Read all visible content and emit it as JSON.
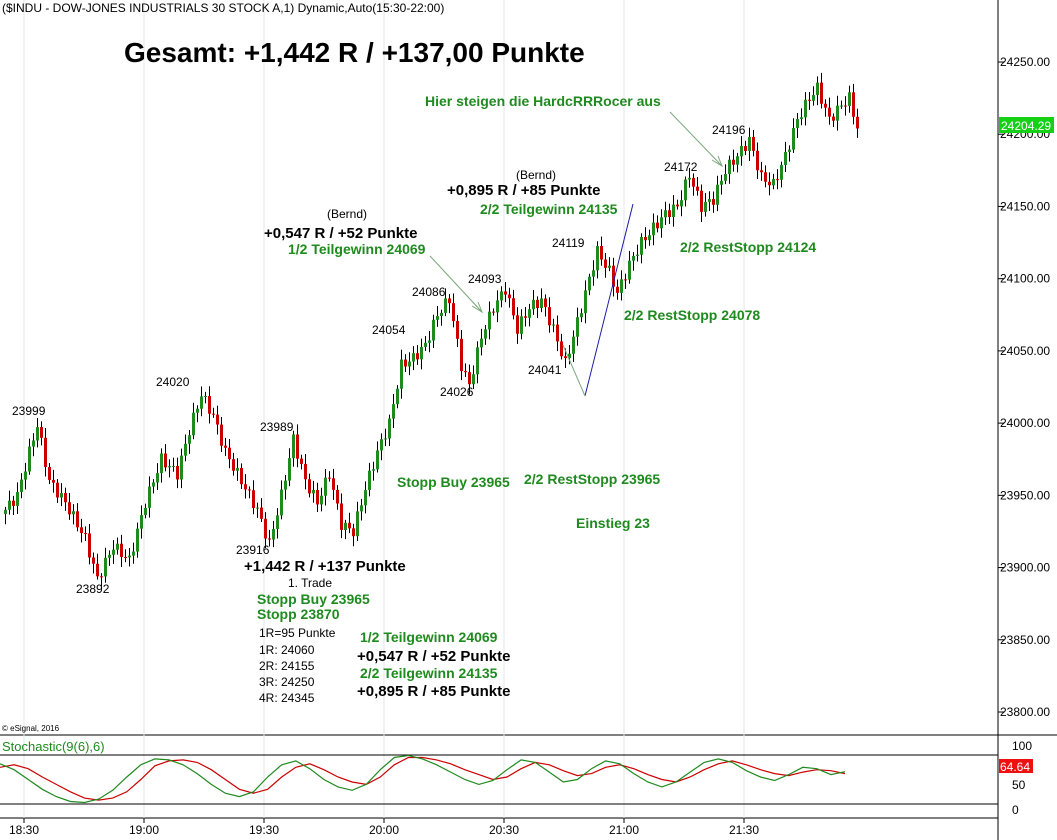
{
  "header": {
    "symbol_line": "($INDU - DOW-JONES INDUSTRIALS 30 STOCK A,1) Dynamic,Auto(15:30-22:00)",
    "summary": "Gesamt: +1,442 R / +137,00 Punkte",
    "copyright": "© eSignal, 2016"
  },
  "chart_data": {
    "type": "candlestick",
    "title": "($INDU - DOW-JONES INDUSTRIALS 30 STOCK A,1) Dynamic,Auto(15:30-22:00)",
    "x_ticks": [
      "18:30",
      "19:00",
      "19:30",
      "20:00",
      "20:30",
      "21:00",
      "21:30"
    ],
    "y_ticks": [
      "24250.00",
      "24200.00",
      "24150.00",
      "24100.00",
      "24050.00",
      "24000.00",
      "23950.00",
      "23900.00",
      "23850.00",
      "23800.00"
    ],
    "ylim": [
      23788,
      24264
    ],
    "last_price": "24204.29",
    "price_path": [
      [
        0,
        23940
      ],
      [
        3,
        23950
      ],
      [
        6,
        23980
      ],
      [
        8,
        23999
      ],
      [
        11,
        23960
      ],
      [
        15,
        23945
      ],
      [
        20,
        23920
      ],
      [
        23,
        23892
      ],
      [
        27,
        23915
      ],
      [
        31,
        23905
      ],
      [
        35,
        23945
      ],
      [
        39,
        23975
      ],
      [
        43,
        23965
      ],
      [
        46,
        23995
      ],
      [
        49,
        24020
      ],
      [
        52,
        24005
      ],
      [
        55,
        23980
      ],
      [
        59,
        23960
      ],
      [
        63,
        23940
      ],
      [
        66,
        23916
      ],
      [
        69,
        23950
      ],
      [
        72,
        23989
      ],
      [
        75,
        23960
      ],
      [
        78,
        23945
      ],
      [
        81,
        23965
      ],
      [
        84,
        23930
      ],
      [
        87,
        23925
      ],
      [
        90,
        23955
      ],
      [
        93,
        23980
      ],
      [
        96,
        24000
      ],
      [
        99,
        24040
      ],
      [
        102,
        24045
      ],
      [
        105,
        24054
      ],
      [
        108,
        24075
      ],
      [
        111,
        24086
      ],
      [
        114,
        24040
      ],
      [
        116,
        24026
      ],
      [
        119,
        24060
      ],
      [
        122,
        24080
      ],
      [
        125,
        24093
      ],
      [
        128,
        24065
      ],
      [
        131,
        24080
      ],
      [
        134,
        24085
      ],
      [
        137,
        24065
      ],
      [
        140,
        24041
      ],
      [
        143,
        24070
      ],
      [
        146,
        24100
      ],
      [
        148,
        24119
      ],
      [
        151,
        24105
      ],
      [
        153,
        24090
      ],
      [
        156,
        24110
      ],
      [
        159,
        24125
      ],
      [
        162,
        24135
      ],
      [
        165,
        24145
      ],
      [
        168,
        24150
      ],
      [
        171,
        24172
      ],
      [
        174,
        24150
      ],
      [
        177,
        24155
      ],
      [
        180,
        24175
      ],
      [
        183,
        24185
      ],
      [
        186,
        24196
      ],
      [
        189,
        24170
      ],
      [
        192,
        24165
      ],
      [
        195,
        24185
      ],
      [
        198,
        24210
      ],
      [
        201,
        24225
      ],
      [
        203,
        24232
      ],
      [
        206,
        24210
      ],
      [
        209,
        24220
      ],
      [
        211,
        24225
      ],
      [
        213,
        24204
      ]
    ],
    "price_labels": [
      "23999",
      "23892",
      "24020",
      "23989",
      "23916",
      "24054",
      "24086",
      "24026",
      "24093",
      "24041",
      "24119",
      "24172",
      "24196"
    ],
    "indicator": {
      "name": "Stochastic(9(6),6)",
      "levels": [
        "100",
        "50",
        "0"
      ],
      "last_value": "64.64",
      "series": [
        {
          "color": "#cc0000",
          "values": [
            75,
            80,
            72,
            55,
            40,
            25,
            12,
            8,
            12,
            25,
            50,
            78,
            88,
            90,
            85,
            70,
            50,
            30,
            22,
            30,
            55,
            75,
            82,
            70,
            55,
            45,
            40,
            55,
            80,
            95,
            95,
            90,
            82,
            70,
            60,
            50,
            55,
            72,
            85,
            80,
            68,
            58,
            62,
            75,
            80,
            72,
            60,
            50,
            45,
            55,
            70,
            82,
            88,
            80,
            70,
            62,
            58,
            65,
            70,
            68,
            62
          ]
        },
        {
          "color": "#1f8a1f",
          "values": [
            82,
            70,
            50,
            30,
            15,
            5,
            3,
            10,
            28,
            55,
            80,
            92,
            90,
            80,
            62,
            40,
            22,
            15,
            25,
            55,
            80,
            88,
            72,
            50,
            35,
            28,
            40,
            70,
            95,
            99,
            92,
            80,
            65,
            50,
            40,
            48,
            70,
            90,
            85,
            65,
            45,
            50,
            72,
            88,
            82,
            62,
            45,
            35,
            45,
            65,
            85,
            92,
            85,
            68,
            55,
            48,
            60,
            75,
            72,
            60,
            66
          ]
        }
      ]
    }
  },
  "annotations": {
    "hardc_exit": "Hier steigen die HardcRRRocer aus",
    "bernd1": "(Bernd)",
    "bernd2": "(Bernd)",
    "result_547": "+0,547 R / +52 Punkte",
    "tg_24069": "1/2 Teilgewinn 24069",
    "result_895": "+0,895 R / +85 Punkte",
    "tg_24135": "2/2 Teilgewinn 24135",
    "reststopp_24124": "2/2 RestStopp 24124",
    "reststopp_24078": "2/2 RestStopp 24078",
    "stopp_buy_mid": "Stopp Buy 23965",
    "reststopp_23965": "2/2 RestStopp 23965",
    "einstieg": "Einstieg 23",
    "trade_result": "+1,442 R / +137 Punkte",
    "trade_name": "1. Trade",
    "stopp_buy": "Stopp Buy 23965",
    "stopp": "Stopp 23870",
    "r_def": "1R=95 Punkte",
    "r1": "1R: 24060",
    "r2": "2R: 24155",
    "r3": "3R: 24250",
    "r4": "4R: 24345",
    "sum_tg1": "1/2 Teilgewinn 24069",
    "sum_res1": "+0,547 R / +52 Punkte",
    "sum_tg2": "2/2 Teilgewinn 24135",
    "sum_res2": "+0,895 R / +85 Punkte"
  },
  "colors": {
    "up_candle": "#1f8a1f",
    "down_candle": "#cc0000",
    "annotation_green": "#1f8a1f",
    "last_price_badge": "#16d016",
    "stoch_badge": "#ee1111",
    "trend_line": "#1a1aaa"
  }
}
